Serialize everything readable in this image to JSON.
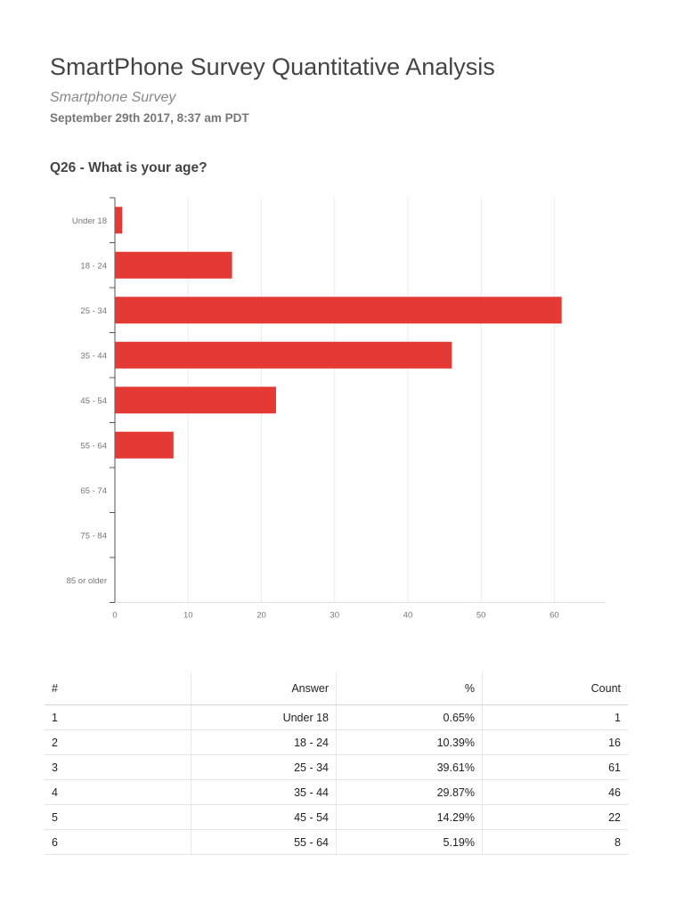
{
  "report": {
    "title": "SmartPhone Survey Quantitative Analysis",
    "subtitle": "Smartphone Survey",
    "datetime": "September 29th 2017, 8:37 am PDT",
    "question": "Q26 - What is your age?"
  },
  "chart_data": {
    "type": "bar",
    "orientation": "horizontal",
    "categories": [
      "Under 18",
      "18 - 24",
      "25 - 34",
      "35 - 44",
      "45 - 54",
      "55 - 64",
      "65 - 74",
      "75 - 84",
      "85 or older"
    ],
    "values": [
      1,
      16,
      61,
      46,
      22,
      8,
      0,
      0,
      0
    ],
    "x_ticks": [
      0,
      10,
      20,
      30,
      40,
      50,
      60
    ],
    "xlim": [
      0,
      67
    ],
    "bar_color": "#e53935",
    "grid": true,
    "legend": "none"
  },
  "table": {
    "headers": [
      "#",
      "Answer",
      "%",
      "Count"
    ],
    "rows": [
      [
        "1",
        "Under 18",
        "0.65%",
        "1"
      ],
      [
        "2",
        "18 - 24",
        "10.39%",
        "16"
      ],
      [
        "3",
        "25 - 34",
        "39.61%",
        "61"
      ],
      [
        "4",
        "35 - 44",
        "29.87%",
        "46"
      ],
      [
        "5",
        "45 - 54",
        "14.29%",
        "22"
      ],
      [
        "6",
        "55 - 64",
        "5.19%",
        "8"
      ]
    ]
  }
}
